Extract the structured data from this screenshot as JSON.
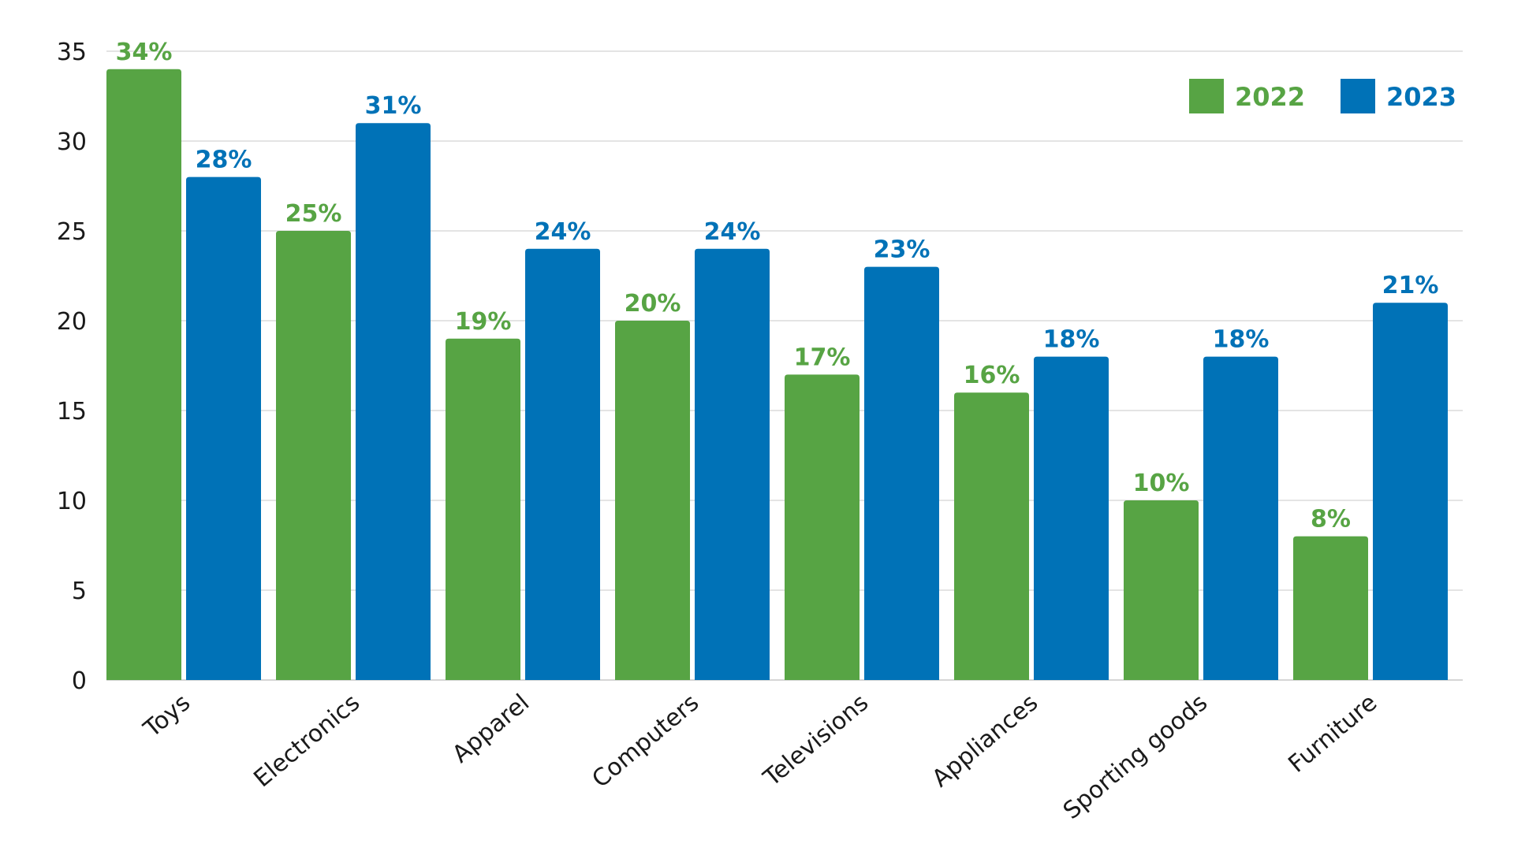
{
  "chart_data": {
    "type": "bar",
    "title": "",
    "xlabel": "",
    "ylabel": "",
    "ylim": [
      0,
      35
    ],
    "yticks": [
      0,
      5,
      10,
      15,
      20,
      25,
      30,
      35
    ],
    "grid": true,
    "legend_position": "top-right",
    "categories": [
      "Toys",
      "Electronics",
      "Apparel",
      "Computers",
      "Televisions",
      "Appliances",
      "Sporting goods",
      "Furniture"
    ],
    "series": [
      {
        "name": "2022",
        "color": "#57A444",
        "values": [
          34,
          25,
          19,
          20,
          17,
          16,
          10,
          8
        ],
        "labels": [
          "34%",
          "25%",
          "19%",
          "20%",
          "17%",
          "16%",
          "10%",
          "8%"
        ]
      },
      {
        "name": "2023",
        "color": "#0072B7",
        "values": [
          28,
          31,
          24,
          24,
          23,
          18,
          18,
          21
        ],
        "labels": [
          "28%",
          "31%",
          "24%",
          "24%",
          "23%",
          "18%",
          "18%",
          "21%"
        ]
      }
    ]
  }
}
